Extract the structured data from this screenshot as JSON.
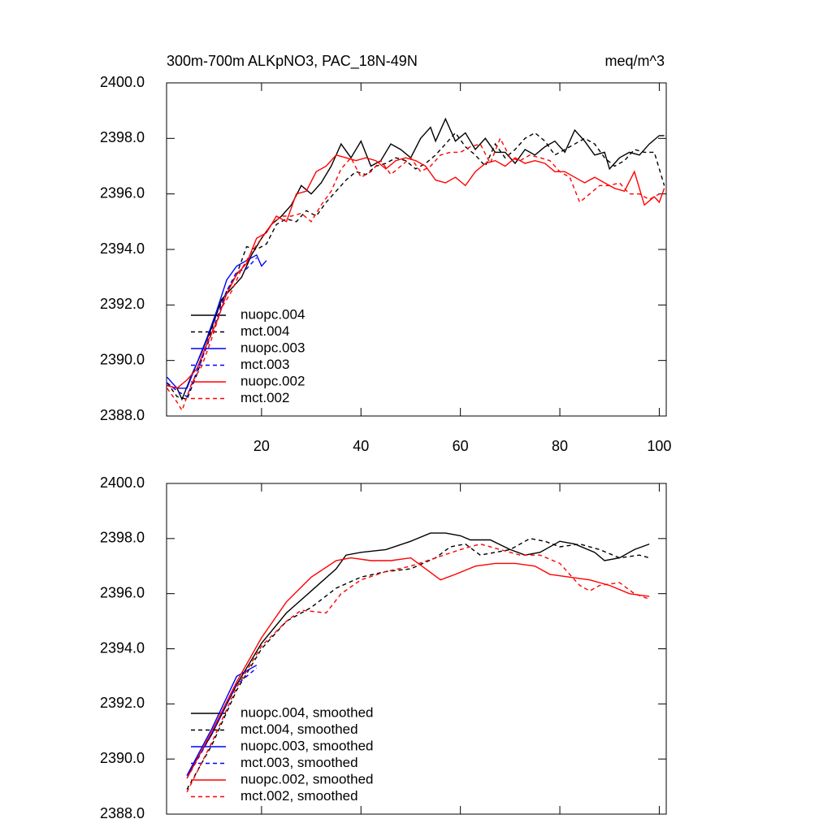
{
  "chart_data": [
    {
      "type": "line",
      "title": "300m-700m ALKpNO3, PAC_18N-49N",
      "units": "meq/m^3",
      "xlim": [
        0.9,
        101.4
      ],
      "xticks": [
        20,
        40,
        60,
        80,
        100
      ],
      "xtick_labels": true,
      "ylim": [
        2388,
        2400
      ],
      "yticks": [
        {
          "value": 2388,
          "label": "2388.0"
        },
        {
          "value": 2390,
          "label": "2390.0"
        },
        {
          "value": 2392,
          "label": "2392.0"
        },
        {
          "value": 2394,
          "label": "2394.0"
        },
        {
          "value": 2396,
          "label": "2396.0"
        },
        {
          "value": 2398,
          "label": "2398.0"
        },
        {
          "value": 2400,
          "label": "2400.0"
        }
      ],
      "legend": "lower-left",
      "series": [
        {
          "name": "nuopc.004",
          "color": "#000000",
          "dash": false,
          "x": [
            1,
            3,
            4,
            6,
            8,
            10,
            12,
            14,
            16,
            18,
            20,
            22,
            24,
            26,
            28,
            30,
            32,
            34,
            36,
            38,
            40,
            42,
            44,
            46,
            48,
            50,
            52,
            54,
            55,
            57,
            59,
            61,
            63,
            65,
            67,
            69,
            71,
            73,
            75,
            77,
            79,
            81,
            83,
            85,
            87,
            89,
            90,
            92,
            94,
            96,
            98,
            100,
            101
          ],
          "values": [
            2389.1,
            2389.0,
            2388.6,
            2389.5,
            2390.3,
            2391.2,
            2392.2,
            2392.6,
            2393.0,
            2393.8,
            2394.4,
            2394.9,
            2395.2,
            2395.6,
            2396.3,
            2396.0,
            2396.4,
            2397.0,
            2397.8,
            2397.3,
            2397.9,
            2397.0,
            2397.2,
            2397.8,
            2397.6,
            2397.3,
            2398.0,
            2398.4,
            2397.9,
            2398.7,
            2397.9,
            2398.2,
            2397.6,
            2398.0,
            2397.5,
            2397.5,
            2397.1,
            2397.6,
            2397.4,
            2397.7,
            2397.9,
            2397.5,
            2398.3,
            2397.9,
            2397.4,
            2397.5,
            2396.9,
            2397.3,
            2397.5,
            2397.4,
            2397.8,
            2398.1,
            2398.1
          ]
        },
        {
          "name": "mct.004",
          "color": "#000000",
          "dash": true,
          "x": [
            1,
            3,
            5,
            7,
            9,
            11,
            13,
            15,
            17,
            19,
            21,
            23,
            25,
            27,
            29,
            31,
            33,
            35,
            37,
            39,
            41,
            43,
            45,
            47,
            49,
            51,
            53,
            55,
            57,
            59,
            61,
            63,
            65,
            67,
            69,
            71,
            73,
            75,
            77,
            79,
            81,
            83,
            85,
            87,
            89,
            91,
            93,
            95,
            97,
            99,
            101
          ],
          "values": [
            2389.2,
            2388.7,
            2388.6,
            2389.5,
            2390.6,
            2391.7,
            2392.5,
            2393.1,
            2394.1,
            2394.0,
            2394.2,
            2394.9,
            2395.1,
            2395.0,
            2395.4,
            2395.2,
            2395.7,
            2396.1,
            2396.5,
            2396.8,
            2396.7,
            2397.0,
            2397.1,
            2397.3,
            2397.2,
            2396.9,
            2397.1,
            2397.4,
            2397.8,
            2398.2,
            2397.7,
            2397.4,
            2397.0,
            2397.8,
            2397.3,
            2397.6,
            2398.0,
            2398.2,
            2397.9,
            2397.4,
            2397.6,
            2397.8,
            2398.0,
            2397.8,
            2397.3,
            2397.0,
            2397.2,
            2397.6,
            2397.5,
            2397.5,
            2396.3
          ]
        },
        {
          "name": "nuopc.003",
          "color": "#0000ff",
          "dash": false,
          "x": [
            1,
            3,
            5,
            7,
            9,
            11,
            13,
            15,
            17,
            19,
            20,
            21
          ],
          "values": [
            2389.4,
            2389.0,
            2389.0,
            2389.9,
            2390.8,
            2391.8,
            2392.9,
            2393.4,
            2393.6,
            2393.8,
            2393.4,
            2393.6
          ]
        },
        {
          "name": "mct.003",
          "color": "#0000ff",
          "dash": true,
          "x": [
            1,
            3,
            5,
            7,
            9,
            11,
            13,
            15,
            17,
            19
          ],
          "values": [
            2389.2,
            2388.9,
            2388.7,
            2389.6,
            2390.5,
            2391.5,
            2392.5,
            2393.2,
            2393.3,
            2393.7
          ]
        },
        {
          "name": "nuopc.002",
          "color": "#ff0000",
          "dash": false,
          "x": [
            1,
            3,
            5,
            7,
            9,
            11,
            13,
            15,
            17,
            19,
            21,
            23,
            25,
            27,
            29,
            31,
            33,
            35,
            37,
            39,
            41,
            43,
            45,
            47,
            49,
            51,
            53,
            55,
            57,
            59,
            61,
            63,
            65,
            67,
            69,
            71,
            73,
            75,
            77,
            79,
            81,
            83,
            85,
            87,
            89,
            91,
            93,
            95,
            97,
            99,
            100,
            101
          ],
          "values": [
            2389.1,
            2389.0,
            2389.3,
            2389.7,
            2390.6,
            2391.4,
            2392.4,
            2393.1,
            2393.5,
            2394.4,
            2394.6,
            2395.2,
            2395.0,
            2396.0,
            2396.1,
            2396.8,
            2397.0,
            2397.4,
            2397.3,
            2397.2,
            2397.3,
            2397.2,
            2396.9,
            2397.2,
            2397.3,
            2397.2,
            2397.0,
            2396.5,
            2396.4,
            2396.6,
            2396.3,
            2396.8,
            2397.1,
            2397.2,
            2397.0,
            2397.3,
            2397.1,
            2397.2,
            2397.1,
            2396.8,
            2396.8,
            2396.6,
            2396.4,
            2396.6,
            2396.4,
            2396.2,
            2396.1,
            2396.8,
            2395.6,
            2395.9,
            2395.7,
            2396.2
          ]
        },
        {
          "name": "mct.002",
          "color": "#ff0000",
          "dash": true,
          "x": [
            1,
            3,
            4,
            6,
            8,
            10,
            12,
            14,
            16,
            18,
            20,
            22,
            24,
            26,
            28,
            30,
            32,
            34,
            36,
            38,
            40,
            42,
            44,
            46,
            48,
            50,
            52,
            54,
            56,
            58,
            60,
            62,
            64,
            66,
            68,
            70,
            72,
            74,
            76,
            78,
            80,
            82,
            84,
            86,
            88,
            90,
            92,
            94,
            96,
            98,
            100
          ],
          "values": [
            2389.0,
            2388.5,
            2388.2,
            2389.2,
            2389.8,
            2390.8,
            2391.9,
            2392.5,
            2393.3,
            2393.9,
            2394.4,
            2394.9,
            2395.2,
            2395.2,
            2395.3,
            2395.0,
            2395.6,
            2396.1,
            2396.9,
            2397.3,
            2396.6,
            2396.8,
            2397.2,
            2396.7,
            2397.0,
            2397.3,
            2396.8,
            2397.0,
            2397.4,
            2397.5,
            2397.5,
            2397.7,
            2397.8,
            2397.1,
            2398.0,
            2397.3,
            2397.2,
            2397.4,
            2397.3,
            2397.2,
            2396.8,
            2396.6,
            2395.7,
            2396.0,
            2396.3,
            2396.3,
            2396.4,
            2396.0,
            2396.0,
            2395.8,
            2396.0
          ]
        }
      ]
    },
    {
      "type": "line",
      "xlim": [
        0.9,
        101.4
      ],
      "xticks": [
        20,
        40,
        60,
        80,
        100
      ],
      "xtick_labels": false,
      "ylim": [
        2388,
        2400
      ],
      "yticks": [
        {
          "value": 2388,
          "label": "2388.0"
        },
        {
          "value": 2390,
          "label": "2390.0"
        },
        {
          "value": 2392,
          "label": "2392.0"
        },
        {
          "value": 2394,
          "label": "2394.0"
        },
        {
          "value": 2396,
          "label": "2396.0"
        },
        {
          "value": 2398,
          "label": "2398.0"
        },
        {
          "value": 2400,
          "label": "2400.0"
        }
      ],
      "legend": "lower-left",
      "series": [
        {
          "name": "nuopc.004, smoothed",
          "color": "#000000",
          "dash": false,
          "x": [
            5,
            10,
            15,
            20,
            25,
            30,
            35,
            37,
            40,
            45,
            50,
            54,
            57,
            60,
            62,
            66,
            70,
            73,
            76,
            80,
            83,
            87,
            89,
            92,
            95,
            98
          ],
          "values": [
            2389.4,
            2390.9,
            2392.7,
            2394.2,
            2395.3,
            2396.1,
            2396.9,
            2397.4,
            2397.5,
            2397.6,
            2397.9,
            2398.2,
            2398.2,
            2398.1,
            2397.95,
            2397.95,
            2397.6,
            2397.4,
            2397.5,
            2397.9,
            2397.8,
            2397.5,
            2397.2,
            2397.3,
            2397.6,
            2397.8
          ]
        },
        {
          "name": "mct.004, smoothed",
          "color": "#000000",
          "dash": true,
          "x": [
            5,
            10,
            15,
            20,
            25,
            30,
            35,
            40,
            45,
            50,
            55,
            58,
            61,
            64,
            67,
            70,
            74,
            77,
            80,
            84,
            88,
            92,
            96,
            98
          ],
          "values": [
            2388.9,
            2390.5,
            2392.5,
            2394.0,
            2395.0,
            2395.5,
            2396.2,
            2396.6,
            2396.8,
            2396.9,
            2397.3,
            2397.7,
            2397.8,
            2397.4,
            2397.5,
            2397.6,
            2398.0,
            2397.9,
            2397.7,
            2397.8,
            2397.6,
            2397.3,
            2397.4,
            2397.3
          ]
        },
        {
          "name": "nuopc.003, smoothed",
          "color": "#0000ff",
          "dash": false,
          "x": [
            5,
            10,
            15,
            18,
            19
          ],
          "values": [
            2389.4,
            2391.1,
            2393.0,
            2393.3,
            2393.4
          ]
        },
        {
          "name": "mct.003, smoothed",
          "color": "#0000ff",
          "dash": true,
          "x": [
            5,
            10,
            15,
            19
          ],
          "values": [
            2389.3,
            2390.9,
            2392.7,
            2393.3
          ]
        },
        {
          "name": "nuopc.002, smoothed",
          "color": "#ff0000",
          "dash": false,
          "x": [
            5,
            10,
            15,
            20,
            25,
            30,
            35,
            38,
            42,
            46,
            50,
            53,
            56,
            59,
            63,
            67,
            71,
            75,
            78,
            82,
            86,
            90,
            94,
            98
          ],
          "values": [
            2389.3,
            2391.0,
            2392.8,
            2394.4,
            2395.7,
            2396.6,
            2397.2,
            2397.3,
            2397.2,
            2397.2,
            2397.3,
            2396.9,
            2396.5,
            2396.7,
            2397.0,
            2397.1,
            2397.1,
            2397.0,
            2396.7,
            2396.6,
            2396.5,
            2396.3,
            2396.0,
            2395.9
          ]
        },
        {
          "name": "mct.002, smoothed",
          "color": "#ff0000",
          "dash": true,
          "x": [
            5,
            10,
            15,
            20,
            25,
            28,
            33,
            36,
            40,
            45,
            50,
            55,
            60,
            64,
            68,
            72,
            76,
            80,
            84,
            86,
            88,
            92,
            95,
            98
          ],
          "values": [
            2388.8,
            2390.6,
            2392.6,
            2394.1,
            2395.0,
            2395.4,
            2395.3,
            2396.0,
            2396.5,
            2396.8,
            2397.0,
            2397.3,
            2397.6,
            2397.8,
            2397.6,
            2397.4,
            2397.4,
            2397.1,
            2396.3,
            2396.1,
            2396.3,
            2396.4,
            2396.0,
            2395.8
          ]
        }
      ]
    }
  ]
}
